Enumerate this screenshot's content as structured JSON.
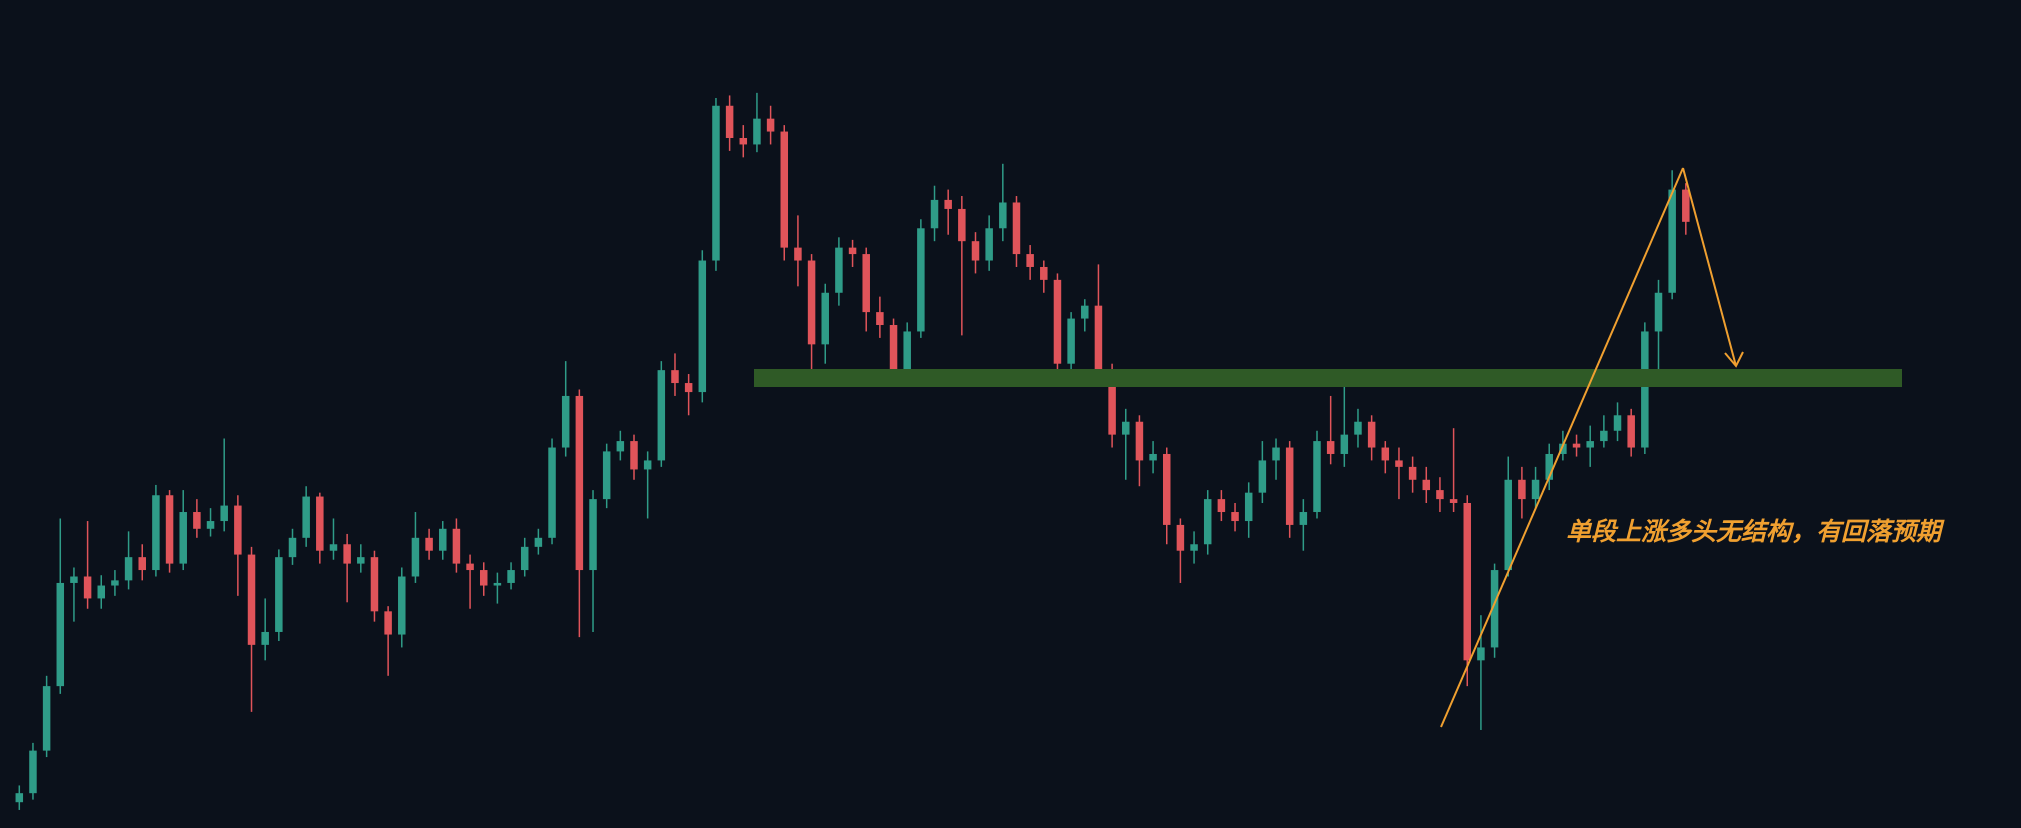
{
  "chart_data": {
    "type": "candlestick",
    "annotation": "单段上涨多头无结构，有回落预期",
    "up_color": "#2f9c88",
    "down_color": "#e0545a",
    "ylim": [
      0,
      642
    ],
    "ohlc": [
      [
        20,
        33,
        14,
        27
      ],
      [
        27,
        66,
        22,
        60
      ],
      [
        60,
        118,
        55,
        110
      ],
      [
        110,
        240,
        104,
        190
      ],
      [
        190,
        202,
        160,
        195
      ],
      [
        195,
        238,
        170,
        178
      ],
      [
        178,
        196,
        170,
        188
      ],
      [
        188,
        200,
        180,
        192
      ],
      [
        192,
        230,
        185,
        210
      ],
      [
        210,
        220,
        192,
        200
      ],
      [
        200,
        266,
        195,
        258
      ],
      [
        258,
        262,
        198,
        205
      ],
      [
        205,
        262,
        200,
        245
      ],
      [
        245,
        255,
        225,
        232
      ],
      [
        232,
        248,
        226,
        238
      ],
      [
        238,
        302,
        230,
        250
      ],
      [
        250,
        258,
        180,
        212
      ],
      [
        212,
        218,
        90,
        142
      ],
      [
        142,
        178,
        130,
        152
      ],
      [
        152,
        216,
        145,
        210
      ],
      [
        210,
        232,
        204,
        225
      ],
      [
        225,
        265,
        218,
        257
      ],
      [
        257,
        260,
        205,
        215
      ],
      [
        215,
        240,
        208,
        220
      ],
      [
        220,
        228,
        175,
        205
      ],
      [
        205,
        220,
        198,
        210
      ],
      [
        210,
        215,
        160,
        168
      ],
      [
        168,
        172,
        118,
        150
      ],
      [
        150,
        202,
        140,
        195
      ],
      [
        195,
        245,
        190,
        225
      ],
      [
        225,
        232,
        208,
        215
      ],
      [
        215,
        238,
        208,
        232
      ],
      [
        232,
        240,
        198,
        205
      ],
      [
        205,
        212,
        170,
        200
      ],
      [
        200,
        206,
        180,
        188
      ],
      [
        188,
        198,
        174,
        190
      ],
      [
        190,
        206,
        185,
        200
      ],
      [
        200,
        225,
        195,
        218
      ],
      [
        218,
        232,
        212,
        225
      ],
      [
        225,
        302,
        220,
        295
      ],
      [
        295,
        362,
        288,
        335
      ],
      [
        335,
        340,
        148,
        200
      ],
      [
        200,
        262,
        152,
        255
      ],
      [
        255,
        298,
        248,
        292
      ],
      [
        292,
        308,
        285,
        300
      ],
      [
        300,
        305,
        270,
        278
      ],
      [
        278,
        292,
        240,
        285
      ],
      [
        285,
        362,
        280,
        355
      ],
      [
        355,
        368,
        335,
        345
      ],
      [
        345,
        352,
        320,
        338
      ],
      [
        338,
        448,
        330,
        440
      ],
      [
        440,
        566,
        432,
        560
      ],
      [
        560,
        568,
        525,
        535
      ],
      [
        535,
        545,
        520,
        530
      ],
      [
        530,
        570,
        524,
        550
      ],
      [
        550,
        560,
        530,
        540
      ],
      [
        540,
        545,
        440,
        450
      ],
      [
        450,
        475,
        420,
        440
      ],
      [
        440,
        445,
        352,
        375
      ],
      [
        375,
        422,
        360,
        415
      ],
      [
        415,
        458,
        405,
        450
      ],
      [
        450,
        456,
        435,
        445
      ],
      [
        445,
        450,
        385,
        400
      ],
      [
        400,
        412,
        380,
        390
      ],
      [
        390,
        395,
        345,
        355
      ],
      [
        355,
        392,
        350,
        385
      ],
      [
        385,
        472,
        380,
        465
      ],
      [
        465,
        498,
        455,
        487
      ],
      [
        487,
        495,
        460,
        480
      ],
      [
        480,
        490,
        382,
        455
      ],
      [
        455,
        462,
        430,
        440
      ],
      [
        440,
        475,
        432,
        465
      ],
      [
        465,
        515,
        455,
        485
      ],
      [
        485,
        490,
        435,
        445
      ],
      [
        445,
        452,
        425,
        435
      ],
      [
        435,
        440,
        415,
        425
      ],
      [
        425,
        430,
        352,
        360
      ],
      [
        360,
        400,
        350,
        395
      ],
      [
        395,
        410,
        385,
        405
      ],
      [
        405,
        437,
        345,
        355
      ],
      [
        355,
        360,
        295,
        305
      ],
      [
        305,
        325,
        270,
        315
      ],
      [
        315,
        320,
        265,
        285
      ],
      [
        285,
        300,
        275,
        290
      ],
      [
        290,
        295,
        220,
        235
      ],
      [
        235,
        240,
        190,
        215
      ],
      [
        215,
        230,
        205,
        220
      ],
      [
        220,
        262,
        212,
        255
      ],
      [
        255,
        262,
        238,
        245
      ],
      [
        245,
        252,
        230,
        238
      ],
      [
        238,
        268,
        225,
        260
      ],
      [
        260,
        300,
        252,
        285
      ],
      [
        285,
        302,
        270,
        295
      ],
      [
        295,
        300,
        225,
        235
      ],
      [
        235,
        255,
        215,
        245
      ],
      [
        245,
        308,
        240,
        300
      ],
      [
        300,
        335,
        282,
        290
      ],
      [
        290,
        345,
        280,
        305
      ],
      [
        305,
        325,
        295,
        315
      ],
      [
        315,
        320,
        285,
        295
      ],
      [
        295,
        300,
        275,
        285
      ],
      [
        285,
        295,
        255,
        280
      ],
      [
        280,
        288,
        260,
        270
      ],
      [
        270,
        280,
        252,
        262
      ],
      [
        262,
        272,
        245,
        255
      ],
      [
        255,
        310,
        245,
        252
      ],
      [
        252,
        258,
        110,
        130
      ],
      [
        130,
        165,
        76,
        140
      ],
      [
        140,
        205,
        132,
        200
      ],
      [
        200,
        288,
        195,
        270
      ],
      [
        270,
        280,
        240,
        255
      ],
      [
        255,
        280,
        248,
        270
      ],
      [
        270,
        298,
        262,
        290
      ],
      [
        290,
        308,
        285,
        298
      ],
      [
        298,
        305,
        288,
        295
      ],
      [
        295,
        312,
        280,
        300
      ],
      [
        300,
        320,
        295,
        308
      ],
      [
        308,
        330,
        300,
        320
      ],
      [
        320,
        325,
        288,
        295
      ],
      [
        295,
        392,
        290,
        385
      ],
      [
        385,
        425,
        352,
        415
      ],
      [
        415,
        510,
        410,
        495
      ],
      [
        495,
        500,
        460,
        470
      ]
    ]
  }
}
